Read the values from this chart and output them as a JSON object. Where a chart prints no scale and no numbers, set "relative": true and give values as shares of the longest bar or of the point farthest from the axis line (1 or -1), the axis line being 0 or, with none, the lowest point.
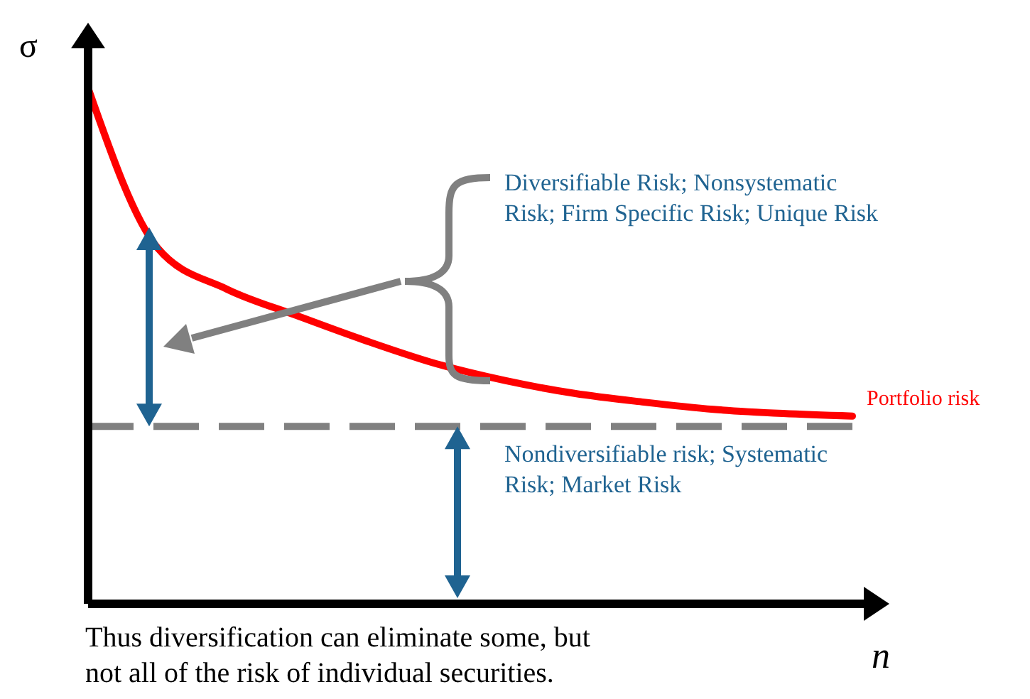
{
  "chart_data": {
    "type": "line",
    "relative": true,
    "xlabel": "n",
    "ylabel": "σ",
    "categories": [
      null,
      null,
      null,
      null,
      null,
      null,
      null,
      null,
      null,
      null,
      null,
      null
    ],
    "series": [
      {
        "name": "Portfolio risk",
        "color": "#ff0000",
        "values": [
          1,
          0.69,
          0.61,
          0.559,
          0.51,
          0.466,
          0.433,
          0.408,
          0.391,
          0.377,
          0.369,
          0.364
        ]
      }
    ],
    "ref_lines": [
      {
        "axis": "y",
        "value": 0.344,
        "color": "#808080",
        "line_style": "dashed"
      }
    ],
    "annotations": [
      "Diversifiable Risk; Nonsystematic Risk; Firm Specific Risk; Unique Risk",
      "Nondiversifiable risk; Systematic Risk; Market Risk",
      "Thus diversification can eliminate some, but not all of the risk of individual securities."
    ],
    "grid": false
  }
}
